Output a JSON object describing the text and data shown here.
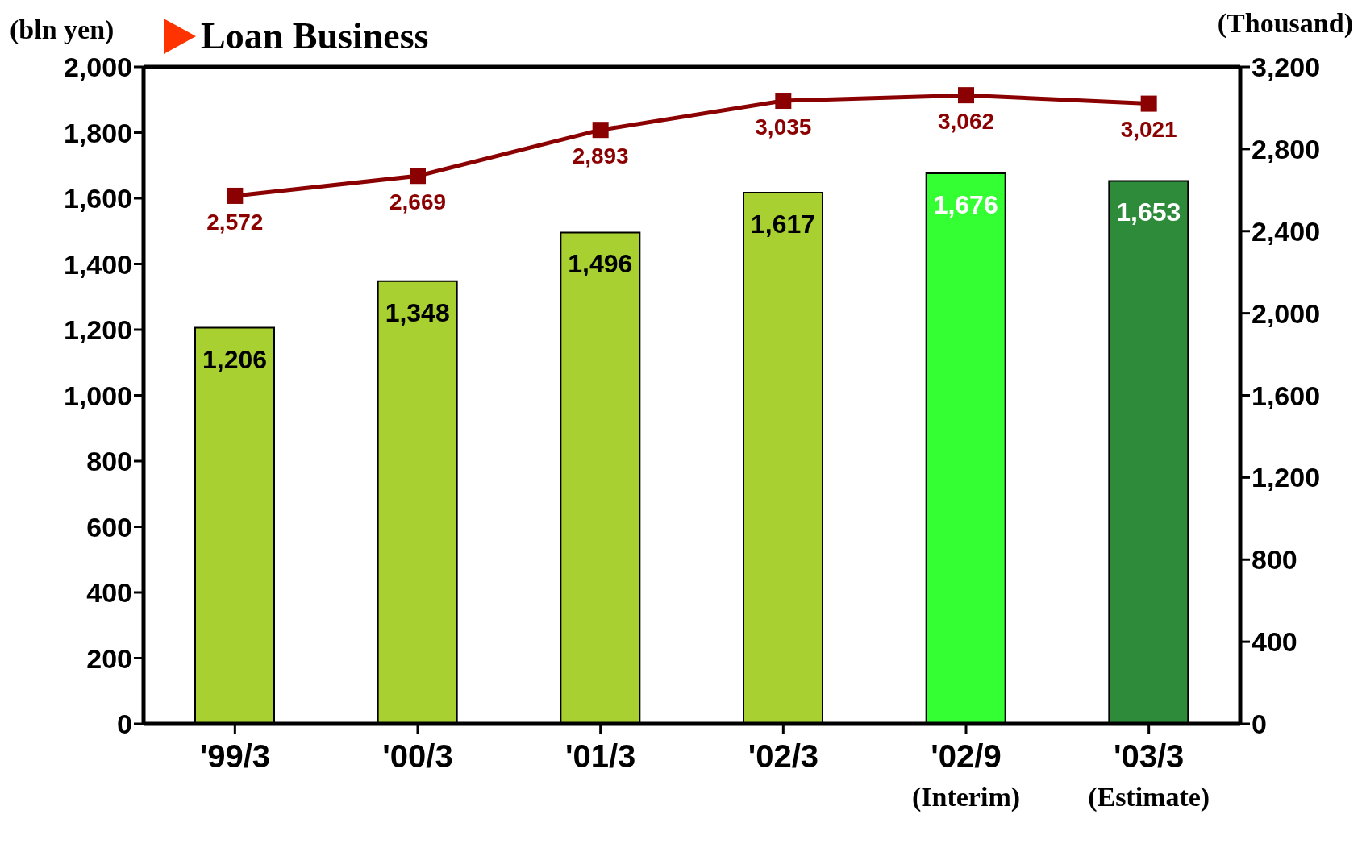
{
  "chart_data": {
    "type": "bar",
    "title": "Loan Business",
    "ylabel": "(bln yen)",
    "y2label": "(Thousand)",
    "categories": [
      "'99/3",
      "'00/3",
      "'01/3",
      "'02/3",
      "'02/9\n(Interim)",
      "'03/3\n(Estimate)"
    ],
    "series": [
      {
        "values": [
          1206,
          1348,
          1496,
          1617,
          1676,
          1653
        ],
        "value_labels": [
          "1,206",
          "1,348",
          "1,496",
          "1,617",
          "1,676",
          "1,653"
        ],
        "colors": [
          "#a8d030",
          "#a8d030",
          "#a8d030",
          "#a8d030",
          "#33ff33",
          "#2e8b3a"
        ]
      },
      {
        "type": "line",
        "axis": "y2",
        "color": "#8b0000",
        "values": [
          2572,
          2669,
          2893,
          3035,
          3062,
          3021
        ],
        "value_labels": [
          "2,572",
          "2,669",
          "2,893",
          "3,035",
          "3,062",
          "3,021"
        ],
        "marker": "square"
      }
    ],
    "ylim": [
      0,
      2000
    ],
    "yticks": [
      0,
      200,
      400,
      600,
      800,
      {
        "value": 1000,
        "label": "1,000"
      },
      {
        "value": 1200,
        "label": "1,200"
      },
      {
        "value": 1400,
        "label": "1,400"
      },
      {
        "value": 1600,
        "label": "1,600"
      },
      {
        "value": 1800,
        "label": "1,800"
      },
      {
        "value": 2000,
        "label": "2,000"
      }
    ],
    "y2lim": [
      0,
      3200
    ],
    "y2ticks": [
      0,
      400,
      800,
      {
        "value": 1200,
        "label": "1,200"
      },
      {
        "value": 1600,
        "label": "1,600"
      },
      {
        "value": 2000,
        "label": "2,000"
      },
      {
        "value": 2400,
        "label": "2,400"
      },
      {
        "value": 2800,
        "label": "2,800"
      },
      {
        "value": 3200,
        "label": "3,200"
      }
    ],
    "grid": false,
    "legend": false
  }
}
